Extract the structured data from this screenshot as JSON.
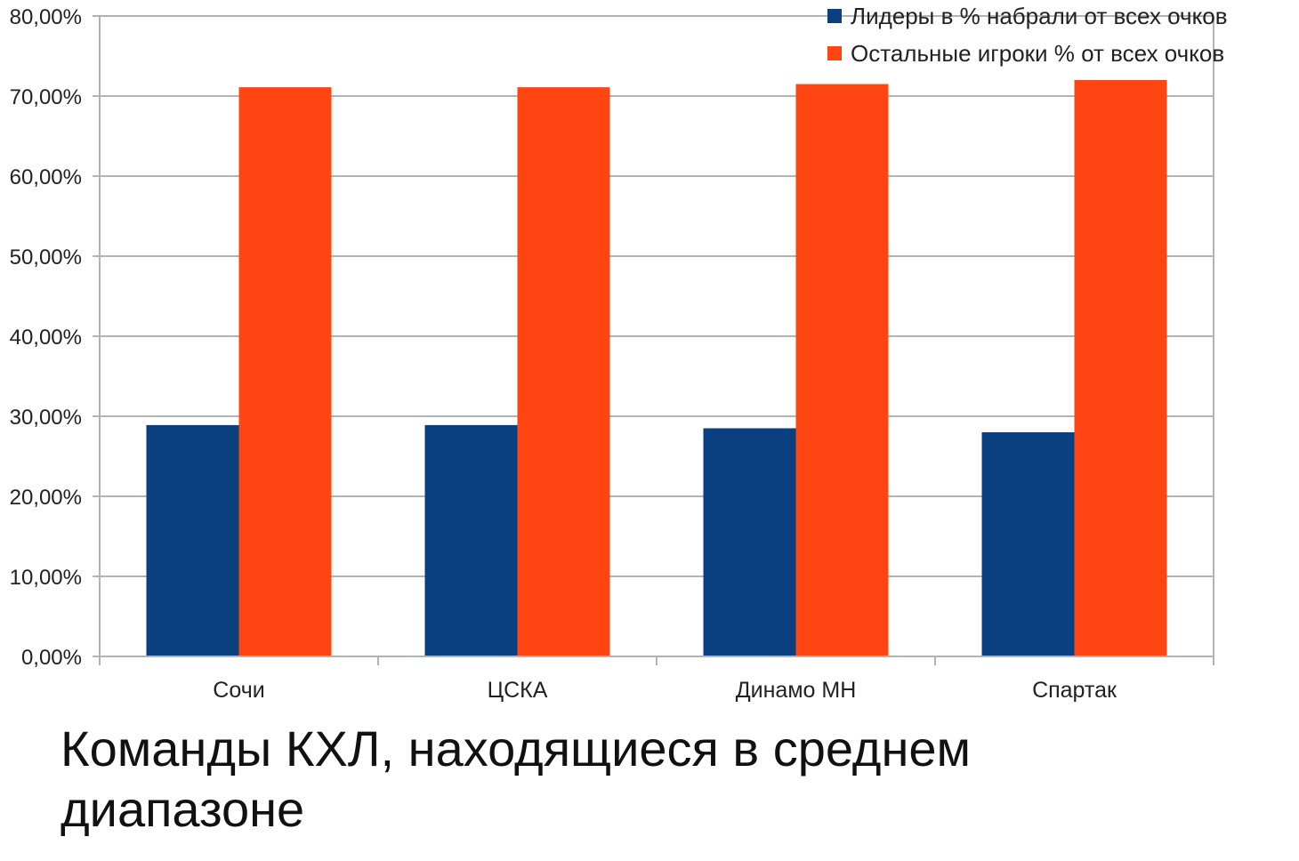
{
  "caption": "Команды КХЛ, находящиеся в среднем диапазоне",
  "colors": {
    "leaders": "#0a4080",
    "others": "#ff4512",
    "grid": "#b3b3b3",
    "axis": "#b3b3b3"
  },
  "chart_data": {
    "type": "bar",
    "categories": [
      "Сочи",
      "ЦСКА",
      "Динамо МН",
      "Спартак"
    ],
    "series": [
      {
        "name": "Лидеры в % набрали от всех очков",
        "values": [
          28.9,
          28.9,
          28.5,
          28.0
        ]
      },
      {
        "name": "Остальные игроки % от всех очков",
        "values": [
          71.1,
          71.1,
          71.5,
          72.0
        ]
      }
    ],
    "yticks": [
      "0,00%",
      "10,00%",
      "20,00%",
      "30,00%",
      "40,00%",
      "50,00%",
      "60,00%",
      "70,00%",
      "80,00%"
    ],
    "ylim": [
      0,
      80
    ],
    "grid": true,
    "legend_position": "top-right",
    "title": "",
    "xlabel": "",
    "ylabel": ""
  }
}
